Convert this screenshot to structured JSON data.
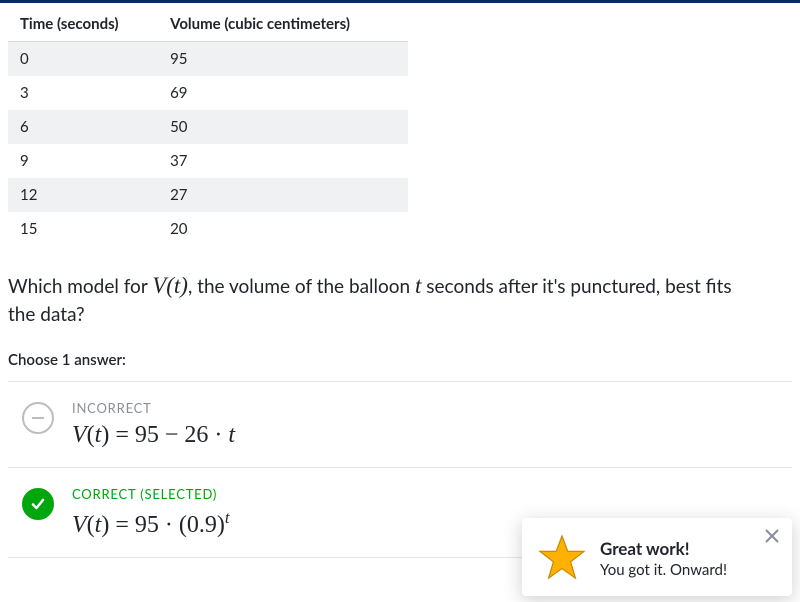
{
  "table": {
    "columns": [
      "Time (seconds)",
      "Volume (cubic centimeters)"
    ],
    "rows": [
      [
        "0",
        "95"
      ],
      [
        "3",
        "69"
      ],
      [
        "6",
        "50"
      ],
      [
        "9",
        "37"
      ],
      [
        "12",
        "27"
      ],
      [
        "15",
        "20"
      ]
    ],
    "row_stripe_color": "#f0f1f2",
    "header_border_color": "#d6d8da"
  },
  "question": {
    "prefix": "Which model for ",
    "var1": "V(t)",
    "mid": ", the volume of the balloon ",
    "var2": "t",
    "suffix": " seconds after it's punctured, best fits the data?"
  },
  "instruction": "Choose 1 answer:",
  "answers": [
    {
      "status_label": "INCORRECT",
      "status": "incorrect",
      "formula_html": "<span class='it'>V</span>(<span class='it'>t</span>) = 95 − 26 · <span class='it'>t</span>"
    },
    {
      "status_label": "CORRECT (SELECTED)",
      "status": "correct",
      "formula_html": "<span class='it'>V</span>(<span class='it'>t</span>) = 95 · (0.9)<sup>t</sup>"
    }
  ],
  "toast": {
    "title": "Great work!",
    "subtitle": "You got it. Onward!",
    "star_fill": "#ffb100",
    "star_stroke": "#c78500"
  },
  "colors": {
    "correct": "#00a60e",
    "muted": "#8a8f98",
    "text": "#21242c",
    "top_bar": "#0a2a66"
  }
}
